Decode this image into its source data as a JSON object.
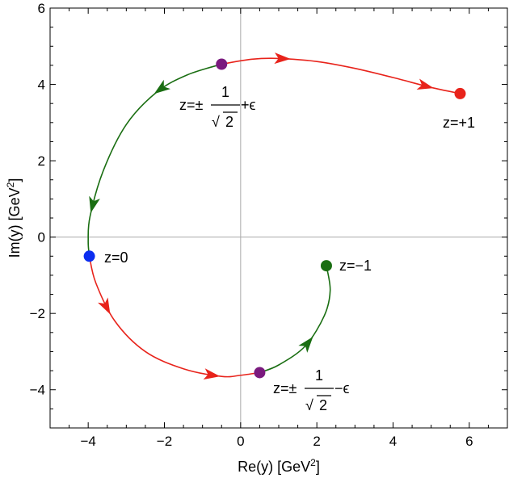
{
  "chart_data": {
    "type": "line",
    "xlabel": "Re(y) [GeV",
    "xlabel_sup": "2",
    "xlabel_end": "]",
    "ylabel": "Im(y) [GeV",
    "ylabel_sup": "2",
    "ylabel_end": "]",
    "xlim": [
      -5,
      7
    ],
    "ylim": [
      -5,
      6
    ],
    "xticks": [
      -4,
      -2,
      0,
      2,
      4,
      6
    ],
    "xtick_labels": [
      "−4",
      "−2",
      "0",
      "2",
      "4",
      "6"
    ],
    "yticks": [
      -4,
      -2,
      0,
      2,
      4,
      6
    ],
    "ytick_labels": [
      "−4",
      "−2",
      "0",
      "2",
      "4",
      "6"
    ],
    "grid": false,
    "zero_lines": true,
    "colors": {
      "red_path": "#e8231b",
      "green_path": "#1a6e12",
      "point_plus1": "#e8231b",
      "point_zero": "#0b2df0",
      "point_minus1": "#1a6e12",
      "point_eps": "#7a1a7e"
    },
    "series": [
      {
        "color": "red",
        "points": [
          [
            -0.5,
            4.53
          ],
          [
            0.3,
            4.66
          ],
          [
            1.0,
            4.68
          ],
          [
            2.0,
            4.6
          ],
          [
            3.0,
            4.42
          ],
          [
            4.0,
            4.18
          ],
          [
            5.0,
            3.92
          ],
          [
            5.76,
            3.76
          ]
        ],
        "arrows": [
          [
            1.1,
            4.68
          ],
          [
            4.85,
            3.96
          ]
        ]
      },
      {
        "color": "green",
        "points": [
          [
            -0.5,
            4.53
          ],
          [
            -1.4,
            4.25
          ],
          [
            -2.2,
            3.8
          ],
          [
            -3.0,
            2.95
          ],
          [
            -3.6,
            1.75
          ],
          [
            -3.95,
            0.55
          ],
          [
            -4.0,
            -0.1
          ],
          [
            -3.97,
            -0.5
          ]
        ],
        "arrows": [
          [
            -2.05,
            3.8
          ],
          [
            -3.95,
            0.85
          ]
        ]
      },
      {
        "color": "red",
        "points": [
          [
            -3.97,
            -0.5
          ],
          [
            -3.8,
            -1.2
          ],
          [
            -3.3,
            -2.2
          ],
          [
            -2.5,
            -3.0
          ],
          [
            -1.5,
            -3.45
          ],
          [
            -0.5,
            -3.65
          ],
          [
            0.0,
            -3.62
          ],
          [
            0.5,
            -3.55
          ]
        ],
        "arrows": [
          [
            -3.55,
            -1.85
          ],
          [
            -0.75,
            -3.6
          ]
        ]
      },
      {
        "color": "green",
        "points": [
          [
            0.5,
            -3.55
          ],
          [
            1.0,
            -3.35
          ],
          [
            1.7,
            -2.85
          ],
          [
            2.2,
            -2.05
          ],
          [
            2.35,
            -1.4
          ],
          [
            2.25,
            -0.75
          ]
        ],
        "arrows": [
          [
            1.8,
            -2.8
          ]
        ]
      }
    ],
    "points": [
      {
        "label": "z=+1",
        "x": 5.76,
        "y": 3.76,
        "color": "red"
      },
      {
        "label": "z=0",
        "x": -3.97,
        "y": -0.5,
        "color": "blue"
      },
      {
        "label": "z=−1",
        "x": 2.25,
        "y": -0.75,
        "color": "green"
      },
      {
        "label": "z=±1/√2+ε",
        "x": -0.5,
        "y": 4.53,
        "color": "purple"
      },
      {
        "label": "z=±1/√2−ε",
        "x": 0.5,
        "y": -3.55,
        "color": "purple"
      }
    ],
    "annotations": {
      "plus1": "z=+1",
      "zero": "z=0",
      "minus1": "z=−1",
      "eps_plus": {
        "prefix": "z=±",
        "numerator": "1",
        "radical": "√",
        "radicand": "2",
        "suffix": "+ϵ"
      },
      "eps_minus": {
        "prefix": "z=±",
        "numerator": "1",
        "radical": "√",
        "radicand": "2",
        "suffix": "−ϵ"
      }
    }
  }
}
